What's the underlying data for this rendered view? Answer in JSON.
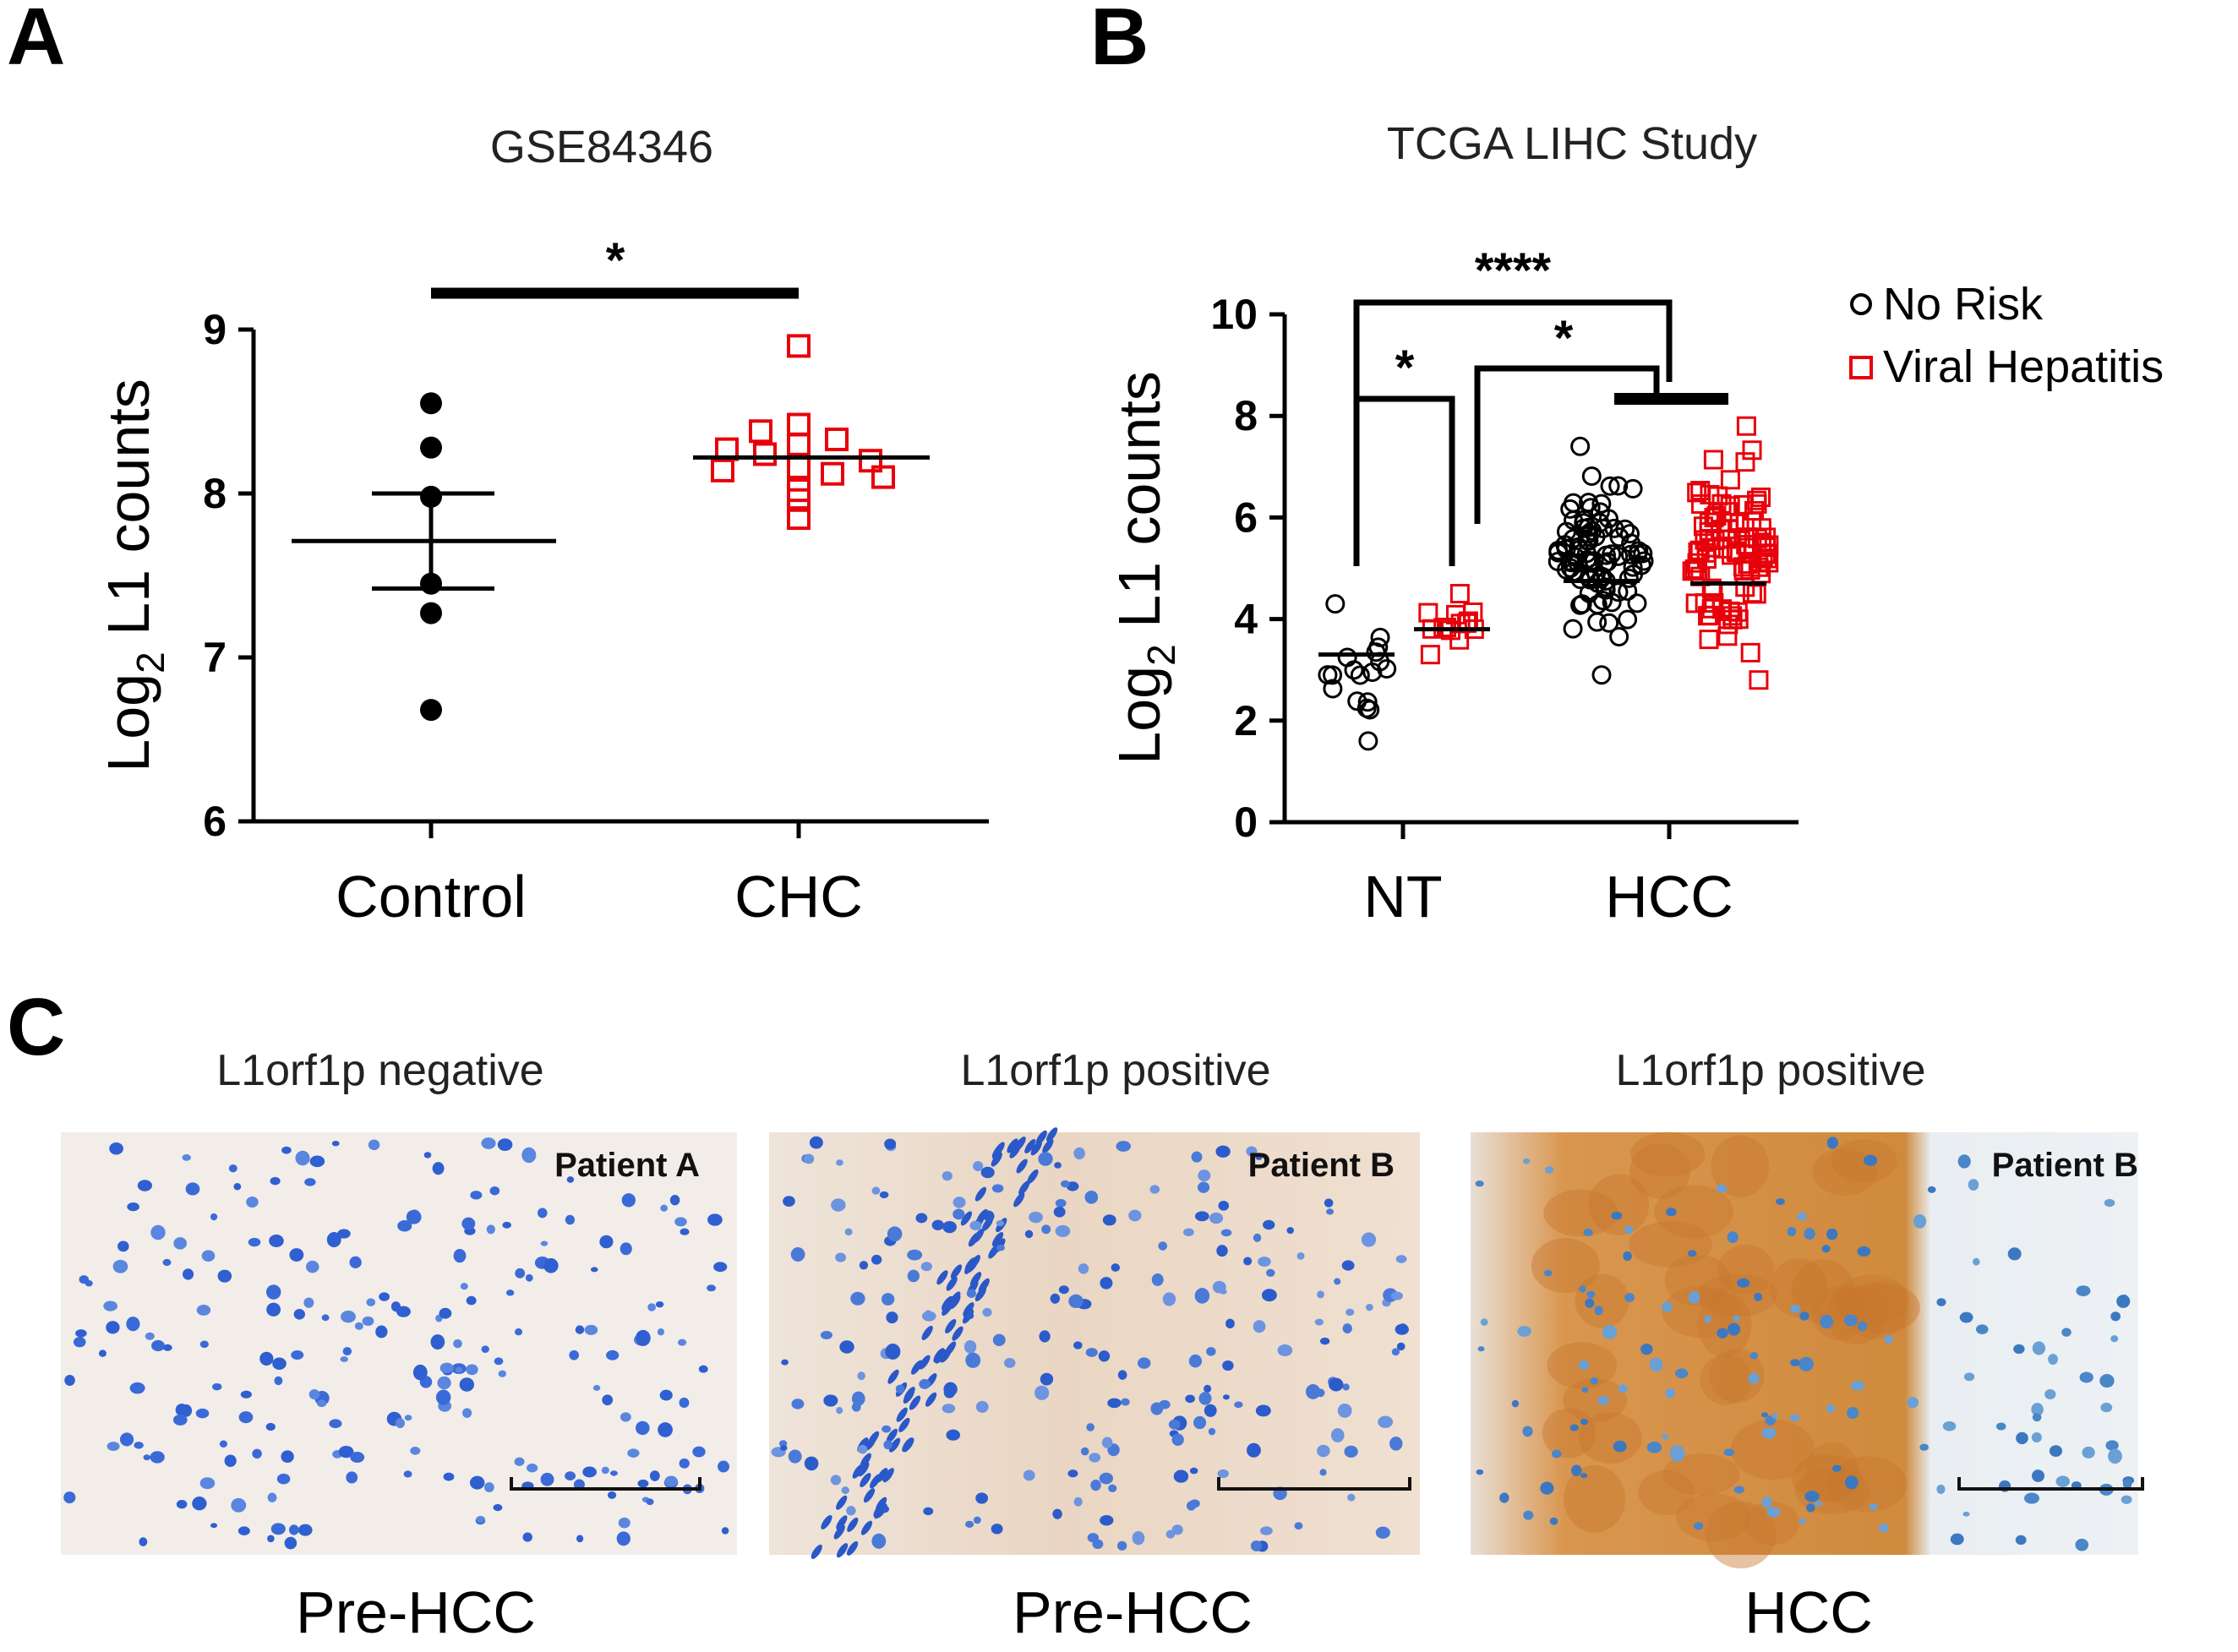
{
  "panels": {
    "A": {
      "letter": "A"
    },
    "B": {
      "letter": "B"
    },
    "C": {
      "letter": "C"
    }
  },
  "chart_data": [
    {
      "panel": "A",
      "type": "scatter",
      "title": "GSE84346",
      "ylabel_main": "Log",
      "ylabel_sub": "2",
      "ylabel_rest": " L1 counts",
      "ylim": [
        6,
        9
      ],
      "yticks": [
        "6",
        "7",
        "8",
        "9"
      ],
      "categories": [
        "Control",
        "CHC"
      ],
      "series": [
        {
          "name": "Control",
          "color": "#000000",
          "marker": "filled-circle",
          "values": [
            8.55,
            8.28,
            7.98,
            7.45,
            7.27,
            6.68
          ],
          "mean": 7.71,
          "sem_low": 7.42,
          "sem_high": 8.0
        },
        {
          "name": "CHC",
          "color": "#e8000b",
          "marker": "open-square",
          "values": [
            8.9,
            8.42,
            8.38,
            8.33,
            8.3,
            8.27,
            8.24,
            8.2,
            8.16,
            8.14,
            8.12,
            8.1,
            8.02,
            7.96,
            7.85
          ],
          "mean": 8.22
        }
      ],
      "significance": [
        {
          "label": "*",
          "from": "Control",
          "to": "CHC"
        }
      ]
    },
    {
      "panel": "B",
      "type": "scatter",
      "title": "TCGA LIHC Study",
      "ylabel_main": "Log",
      "ylabel_sub": "2",
      "ylabel_rest": " L1 counts",
      "ylim": [
        0,
        10
      ],
      "yticks": [
        "0",
        "2",
        "4",
        "6",
        "8",
        "10"
      ],
      "categories": [
        "NT",
        "HCC"
      ],
      "legend": [
        {
          "label": "No Risk",
          "color": "#000000",
          "marker": "open-circle"
        },
        {
          "label": "Viral Hepatitis",
          "color": "#e8000b",
          "marker": "open-square"
        }
      ],
      "groups": [
        {
          "category": "NT",
          "series": "No Risk",
          "mean": 3.3,
          "n": 18,
          "min": 1.6,
          "max": 4.3
        },
        {
          "category": "NT",
          "series": "Viral Hepatitis",
          "mean": 3.8,
          "n": 14,
          "min": 3.3,
          "max": 4.5
        },
        {
          "category": "HCC",
          "series": "No Risk",
          "mean": 4.75,
          "n": 90,
          "min": 2.9,
          "max": 7.4
        },
        {
          "category": "HCC",
          "series": "Viral Hepatitis",
          "mean": 4.7,
          "n": 90,
          "min": 2.8,
          "max": 7.8
        }
      ],
      "significance": [
        {
          "label": "****",
          "level": 10.0
        },
        {
          "label": "*",
          "level": 9.3
        },
        {
          "label": "*",
          "level": 8.4
        }
      ]
    }
  ],
  "panelC": {
    "images": [
      {
        "title": "L1orf1p negative",
        "patient": "Patient A",
        "caption": "Pre-HCC",
        "stain": "negative"
      },
      {
        "title": "L1orf1p positive",
        "patient": "Patient B",
        "caption": "Pre-HCC",
        "stain": "weak"
      },
      {
        "title": "L1orf1p positive",
        "patient": "Patient B",
        "caption": "HCC",
        "stain": "strong"
      }
    ]
  }
}
